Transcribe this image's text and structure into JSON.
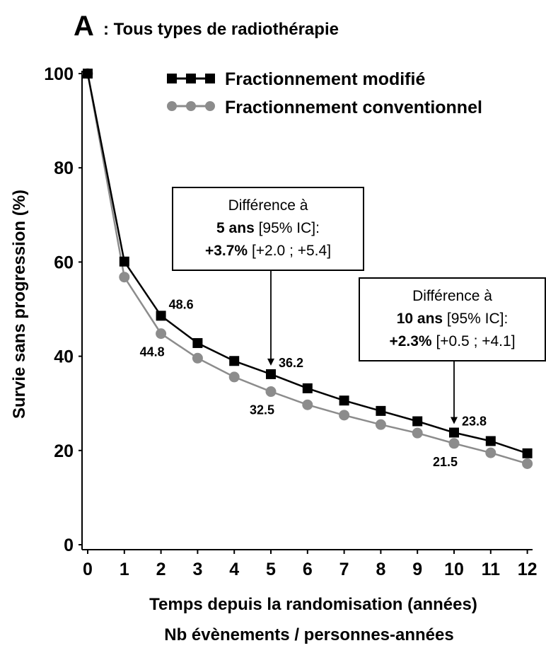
{
  "panel_letter": "A",
  "title": ": Tous types de radiothérapie",
  "chart_data": {
    "type": "line",
    "xlabel": "Temps depuis la randomisation (années)",
    "sublabel": "Nb évènements / personnes-années",
    "ylabel": "Survie  sans progression (%)",
    "x": [
      0,
      1,
      2,
      3,
      4,
      5,
      6,
      7,
      8,
      9,
      10,
      11,
      12
    ],
    "xlim": [
      0,
      12
    ],
    "ylim": [
      0,
      100
    ],
    "yticks": [
      0,
      20,
      40,
      60,
      80,
      100
    ],
    "xticks": [
      0,
      1,
      2,
      3,
      4,
      5,
      6,
      7,
      8,
      9,
      10,
      11,
      12
    ],
    "grid": false,
    "legend_position": "top-right",
    "series": [
      {
        "name": "Fractionnement modifié",
        "color": "#000000",
        "marker": "square",
        "values": [
          100,
          60.1,
          48.6,
          42.8,
          39.0,
          36.2,
          33.2,
          30.6,
          28.4,
          26.2,
          23.8,
          22.0,
          19.4
        ]
      },
      {
        "name": "Fractionnement conventionnel",
        "color": "#8c8c8c",
        "marker": "circle",
        "values": [
          100,
          56.8,
          44.8,
          39.6,
          35.6,
          32.5,
          29.7,
          27.5,
          25.5,
          23.7,
          21.5,
          19.5,
          17.2
        ]
      }
    ],
    "data_labels": [
      {
        "text": "48.6",
        "series": 0,
        "x": 2
      },
      {
        "text": "44.8",
        "series": 1,
        "x": 2
      },
      {
        "text": "36.2",
        "series": 0,
        "x": 5
      },
      {
        "text": "32.5",
        "series": 1,
        "x": 5
      },
      {
        "text": "23.8",
        "series": 0,
        "x": 10
      },
      {
        "text": "21.5",
        "series": 1,
        "x": 10
      }
    ],
    "annotations": [
      {
        "x": 5,
        "line1": "Différence à",
        "line2_bold": "5 ans",
        "line2_rest": " [95% IC]:",
        "line3_bold": "+3.7%",
        "line3_rest": " [+2.0 ; +5.4]"
      },
      {
        "x": 10,
        "line1": "Différence à",
        "line2_bold": "10 ans",
        "line2_rest": " [95% IC]:",
        "line3_bold": "+2.3%",
        "line3_rest": " [+0.5 ; +4.1]"
      }
    ]
  }
}
